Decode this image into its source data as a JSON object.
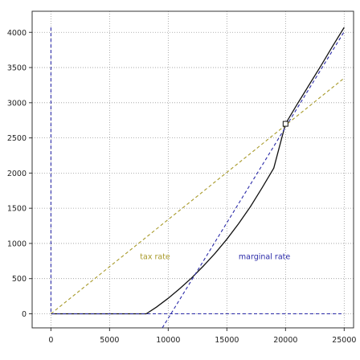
{
  "chart_data": {
    "type": "line",
    "title": "",
    "xlabel": "",
    "ylabel": "",
    "xlim": [
      -1600,
      25800
    ],
    "ylim": [
      -200,
      4300
    ],
    "xticks": [
      0,
      5000,
      10000,
      15000,
      20000,
      25000
    ],
    "yticks": [
      0,
      500,
      1000,
      1500,
      2000,
      2500,
      3000,
      3500,
      4000
    ],
    "grid": true,
    "series": [
      {
        "color": "#111111",
        "style": "solid",
        "points": [
          [
            0,
            0
          ],
          [
            8130,
            0
          ],
          [
            9000,
            95
          ],
          [
            10000,
            220
          ],
          [
            11000,
            360
          ],
          [
            12000,
            510
          ],
          [
            13000,
            680
          ],
          [
            14000,
            860
          ],
          [
            15000,
            1060
          ],
          [
            16000,
            1280
          ],
          [
            17000,
            1520
          ],
          [
            18000,
            1790
          ],
          [
            19000,
            2070
          ],
          [
            20000,
            2700
          ],
          [
            21000,
            2980
          ],
          [
            22000,
            3250
          ],
          [
            23000,
            3520
          ],
          [
            24000,
            3800
          ],
          [
            25000,
            4070
          ]
        ]
      },
      {
        "color": "#a89a2a",
        "style": "dashed",
        "points": [
          [
            0,
            0
          ],
          [
            25000,
            3350
          ]
        ]
      },
      {
        "color": "#2a2aa8",
        "style": "dashed",
        "points": [
          [
            9500,
            -200
          ],
          [
            25000,
            4010
          ]
        ]
      },
      {
        "color": "#2a2aa8",
        "style": "dashed",
        "points": [
          [
            0,
            4070
          ],
          [
            0,
            0
          ],
          [
            25000,
            0
          ]
        ]
      }
    ],
    "annotations": [
      {
        "text": "tax rate",
        "x": 7600,
        "y": 775,
        "color": "#a89a2a"
      },
      {
        "text": "marginal rate",
        "x": 16000,
        "y": 775,
        "color": "#2a2aa8"
      }
    ],
    "marker": {
      "shape": "square",
      "x": 20000,
      "y": 2700
    }
  }
}
